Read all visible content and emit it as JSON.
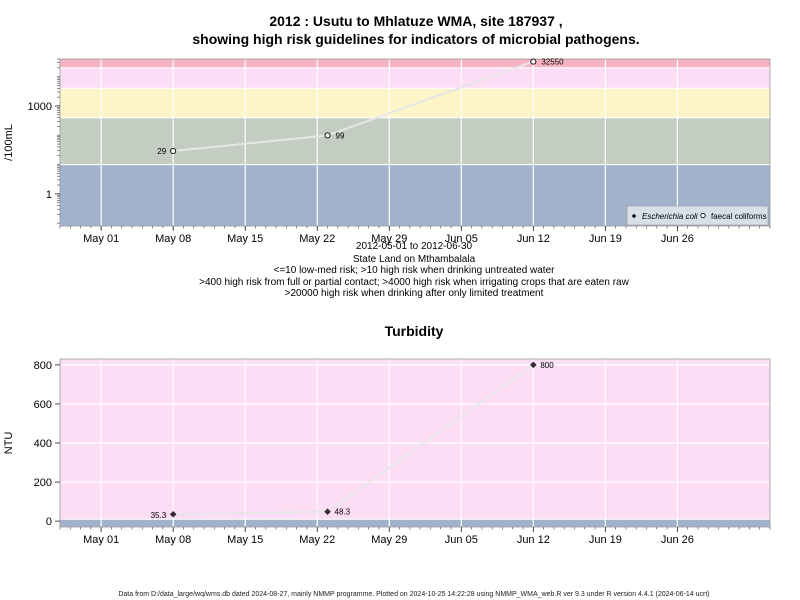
{
  "figure": {
    "title_line1": "2012 : Usutu to Mhlatuze WMA, site 187937 ,",
    "title_line2": "showing high risk guidelines for indicators of microbial pathogens.",
    "subtitle_lines": [
      "2012-05-01 to 2012-06-30",
      "State Land on Mthambalala",
      "<=10 low-med risk; >10 high risk when drinking untreated water",
      ">400 high risk from full or partial contact; >4000 high risk when irrigating crops that are eaten raw",
      ">20000 high risk when drinking after only limited treatment"
    ],
    "footer": "Data from D:/data_large/wq/wms.db dated 2024-08-27, mainly NMMP programme. Plotted on 2024-10-25 14:22:28 using NMMP_WMA_web.R ver 9.3 under R version 4.4.1 (2024-06-14 ucrt)"
  },
  "chart_data": [
    {
      "type": "scatter",
      "ylabel": "/100mL",
      "y_scale": "log10",
      "ylim": [
        0.08,
        40000
      ],
      "y_ticks": [
        1,
        1000
      ],
      "y_tick_labels": [
        "1",
        "1000"
      ],
      "xlim": [
        "2012-04-27",
        "2012-07-05"
      ],
      "x_tick_labels": [
        "May 01",
        "May 08",
        "May 15",
        "May 22",
        "May 29",
        "Jun 05",
        "Jun 12",
        "Jun 19",
        "Jun 26"
      ],
      "x_ticks": [
        "2012-05-01",
        "2012-05-08",
        "2012-05-15",
        "2012-05-22",
        "2012-05-29",
        "2012-06-05",
        "2012-06-12",
        "2012-06-19",
        "2012-06-26"
      ],
      "grid": true,
      "legend_position": "bottom-right",
      "bands": [
        {
          "from": 0.08,
          "to": 10,
          "color": "#a2b2cc"
        },
        {
          "from": 10,
          "to": 400,
          "color": "#c3cdc1"
        },
        {
          "from": 400,
          "to": 4000,
          "color": "#fdf4c7"
        },
        {
          "from": 4000,
          "to": 20000,
          "color": "#fddcf6"
        },
        {
          "from": 20000,
          "to": 40000,
          "color": "#f7b3c3"
        }
      ],
      "series": [
        {
          "name": "Escherichia coli",
          "marker": "filled-diamond",
          "x": [],
          "y": [],
          "labels": []
        },
        {
          "name": "faecal coliforms",
          "marker": "open-circle",
          "x": [
            "2012-05-08",
            "2012-05-23",
            "2012-06-12"
          ],
          "y": [
            29,
            99,
            32550
          ],
          "labels": [
            "29",
            "99",
            "32550"
          ]
        }
      ]
    },
    {
      "type": "scatter",
      "title": "Turbidity",
      "ylabel": "NTU",
      "ylim": [
        -30,
        830
      ],
      "y_ticks": [
        0,
        200,
        400,
        600,
        800
      ],
      "y_tick_labels": [
        "0",
        "200",
        "400",
        "600",
        "800"
      ],
      "xlim": [
        "2012-04-27",
        "2012-07-05"
      ],
      "x_tick_labels": [
        "May 01",
        "May 08",
        "May 15",
        "May 22",
        "May 29",
        "Jun 05",
        "Jun 12",
        "Jun 19",
        "Jun 26"
      ],
      "x_ticks": [
        "2012-05-01",
        "2012-05-08",
        "2012-05-15",
        "2012-05-22",
        "2012-05-29",
        "2012-06-05",
        "2012-06-12",
        "2012-06-19",
        "2012-06-26"
      ],
      "grid": true,
      "bands": [
        {
          "from": -30,
          "to": 10,
          "color": "#a2b2cc"
        },
        {
          "from": 10,
          "to": 830,
          "color": "#fddcf6"
        }
      ],
      "series": [
        {
          "name": "Turbidity",
          "marker": "filled-diamond",
          "x": [
            "2012-05-08",
            "2012-05-23",
            "2012-06-12"
          ],
          "y": [
            35.3,
            48.3,
            800
          ],
          "labels": [
            "35.3",
            "48.3",
            "800"
          ]
        }
      ]
    }
  ]
}
